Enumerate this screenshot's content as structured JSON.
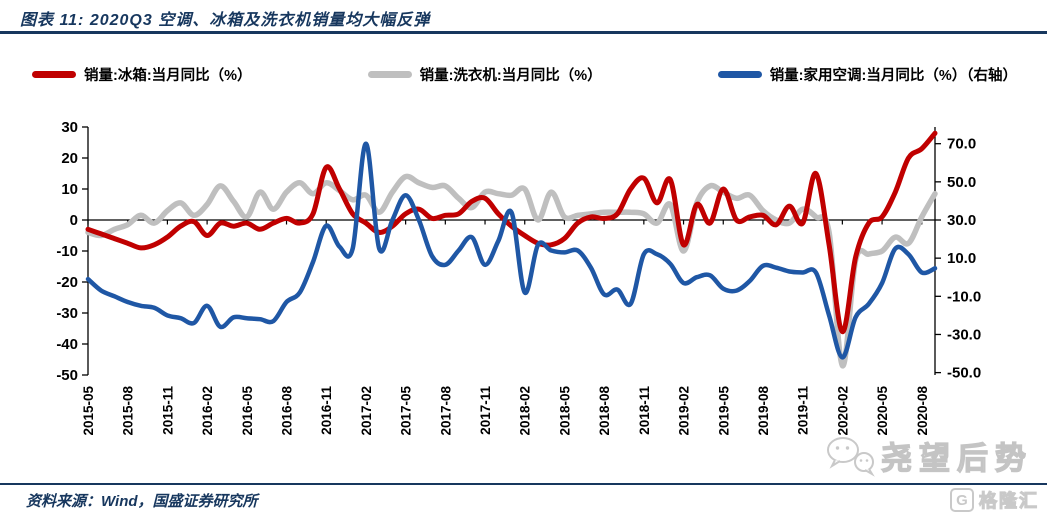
{
  "header": {
    "title": "图表 11:  2020Q3 空调、冰箱及洗衣机销量均大幅反弹"
  },
  "legend": {
    "items": [
      {
        "label": "销量:冰箱:当月同比（%）",
        "color": "#C00000"
      },
      {
        "label": "销量:洗衣机:当月同比（%）",
        "color": "#BFBFBF"
      },
      {
        "label": "销量:家用空调:当月同比（%）（右轴）",
        "color": "#1F57A5"
      }
    ]
  },
  "footer": {
    "source": "资料来源：Wind，国盛证券研究所"
  },
  "watermark": {
    "text": "尧望后势",
    "brand": "格隆汇",
    "brand_logo_letter": "G"
  },
  "colors": {
    "accent_navy": "#17375E",
    "axis_black": "#000000",
    "red": "#C00000",
    "gray": "#BFBFBF",
    "blue": "#1F57A5"
  },
  "chart_data": {
    "type": "line",
    "title": "2020Q3 空调、冰箱及洗衣机销量均大幅反弹",
    "x_monthly": [
      "2015-05",
      "2015-06",
      "2015-07",
      "2015-08",
      "2015-09",
      "2015-10",
      "2015-11",
      "2015-12",
      "2016-01",
      "2016-02",
      "2016-03",
      "2016-04",
      "2016-05",
      "2016-06",
      "2016-07",
      "2016-08",
      "2016-09",
      "2016-10",
      "2016-11",
      "2016-12",
      "2017-01",
      "2017-02",
      "2017-03",
      "2017-04",
      "2017-05",
      "2017-06",
      "2017-07",
      "2017-08",
      "2017-09",
      "2017-10",
      "2017-11",
      "2017-12",
      "2018-01",
      "2018-02",
      "2018-03",
      "2018-04",
      "2018-05",
      "2018-06",
      "2018-07",
      "2018-08",
      "2018-09",
      "2018-10",
      "2018-11",
      "2018-12",
      "2019-01",
      "2019-02",
      "2019-03",
      "2019-04",
      "2019-05",
      "2019-06",
      "2019-07",
      "2019-08",
      "2019-09",
      "2019-10",
      "2019-11",
      "2019-12",
      "2020-01",
      "2020-02",
      "2020-03",
      "2020-04",
      "2020-05",
      "2020-06",
      "2020-07",
      "2020-08",
      "2020-09"
    ],
    "x_axis_tick_labels": [
      "2015-05",
      "2015-08",
      "2015-11",
      "2016-02",
      "2016-05",
      "2016-08",
      "2016-11",
      "2017-02",
      "2017-05",
      "2017-08",
      "2017-11",
      "2018-02",
      "2018-05",
      "2018-08",
      "2018-11",
      "2019-02",
      "2019-05",
      "2019-08",
      "2019-11",
      "2020-02",
      "2020-05",
      "2020-08"
    ],
    "series": [
      {
        "name": "销量:冰箱:当月同比（%）",
        "axis": "left",
        "color": "#C00000",
        "values": [
          -3,
          -4.5,
          -6,
          -7.5,
          -9,
          -8,
          -5.5,
          -2,
          -0.5,
          -5,
          -1,
          -2,
          -1,
          -3,
          -1,
          0.5,
          -1,
          2,
          17,
          10,
          2,
          -1,
          -4,
          -2,
          2,
          3.5,
          0.5,
          1.5,
          2,
          6,
          7,
          2,
          -2,
          -5,
          -7.5,
          -8,
          -6,
          -1,
          1,
          0.5,
          2,
          10,
          13.5,
          5.5,
          13,
          -8,
          5,
          -1,
          10,
          0,
          1,
          1.5,
          -1.5,
          4.5,
          -1,
          15,
          -8,
          -36,
          -12,
          -1,
          1,
          9,
          20,
          23,
          28
        ]
      },
      {
        "name": "销量:洗衣机:当月同比（%）",
        "axis": "left",
        "color": "#BFBFBF",
        "values": [
          -4,
          -5,
          -3,
          -1.5,
          1.5,
          -1,
          3,
          5.5,
          1.5,
          5,
          11,
          6,
          1,
          9,
          3.5,
          9,
          12,
          8.5,
          12,
          9.5,
          6.5,
          8,
          2.5,
          9,
          14,
          12,
          10.5,
          11,
          7,
          4,
          9,
          8.5,
          8,
          10,
          0,
          9,
          1,
          1.5,
          2,
          2.5,
          2.5,
          2.5,
          2,
          -1,
          5,
          -10,
          5.5,
          11,
          9,
          7,
          8,
          3,
          0,
          -1,
          3.5,
          1,
          -4,
          -47,
          -13,
          -11,
          -10,
          -5.5,
          -7.5,
          1,
          8.5
        ]
      },
      {
        "name": "销量:家用空调:当月同比（%）（右轴）",
        "axis": "right",
        "color": "#1F57A5",
        "values": [
          -1,
          -7,
          -10,
          -13,
          -15,
          -16,
          -20,
          -21.5,
          -24,
          -15,
          -26,
          -21,
          -21.5,
          -22,
          -23,
          -13,
          -8,
          8,
          27,
          16,
          15,
          70,
          15,
          30,
          43,
          30,
          11,
          6.5,
          14,
          21,
          6.5,
          19,
          34,
          -8,
          17,
          14,
          13,
          14,
          5,
          -9,
          -6.5,
          -14,
          12,
          12,
          7,
          -3,
          0,
          1,
          -6,
          -7,
          -2,
          6,
          5,
          3,
          2.5,
          2.5,
          -20,
          -42,
          -21,
          -14,
          -3,
          15,
          12,
          2.5,
          4.7
        ]
      }
    ],
    "left_axis": {
      "ticks": [
        30,
        20,
        10,
        0,
        -10,
        -20,
        -30,
        -40,
        -50
      ],
      "range": [
        -50,
        30
      ]
    },
    "right_axis": {
      "tick_labels": [
        "70.0",
        "50.0",
        "30.0",
        "10.0",
        "-10.0",
        "-30.0",
        "-50.0"
      ],
      "tick_values": [
        70,
        50,
        30,
        10,
        -10,
        -30,
        -50
      ],
      "range": [
        -50,
        80
      ]
    },
    "grid": "off",
    "zero_line": 0,
    "legend_position": "top"
  }
}
